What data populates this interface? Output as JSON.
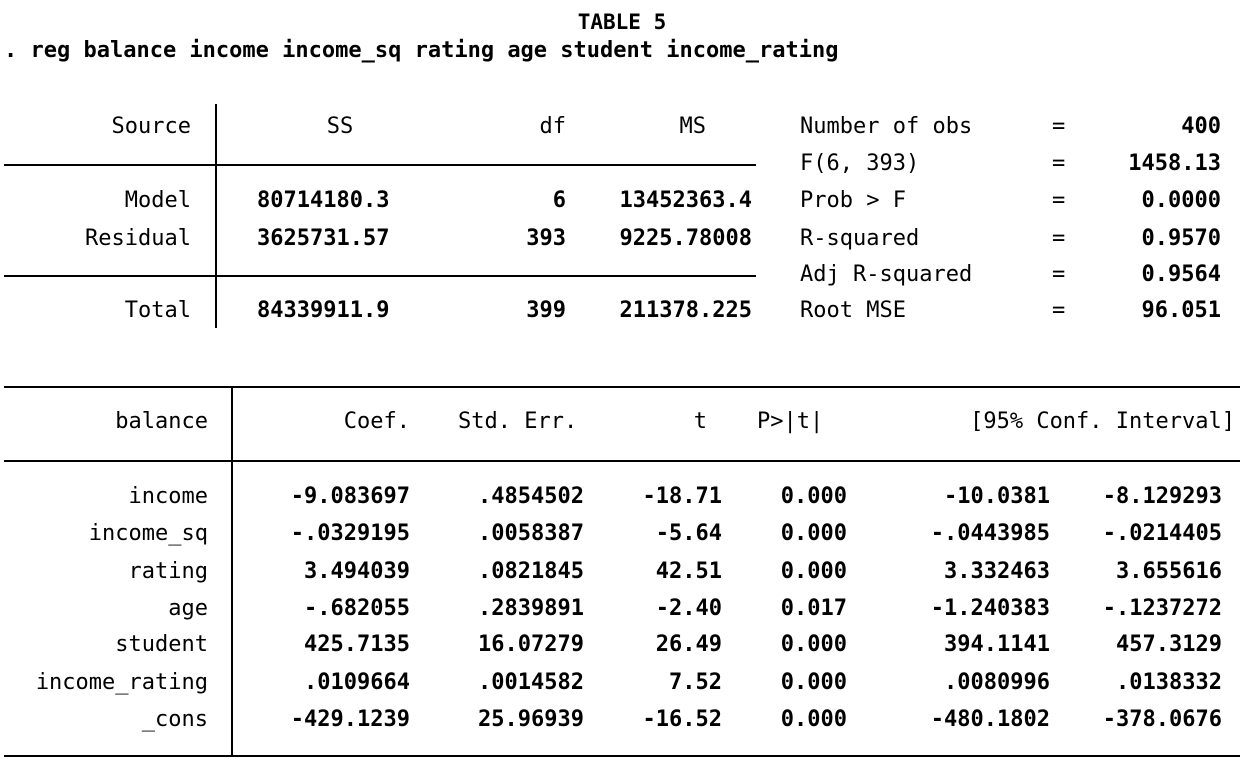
{
  "title": "TABLE 5",
  "command": ". reg balance income income_sq rating age student income_rating",
  "anova": {
    "headers": [
      "Source",
      "SS",
      "df",
      "MS"
    ],
    "rows": [
      {
        "source": "Model",
        "ss": "80714180.3",
        "df": "6",
        "ms": "13452363.4"
      },
      {
        "source": "Residual",
        "ss": "3625731.57",
        "df": "393",
        "ms": "9225.78008"
      },
      {
        "source": "Total",
        "ss": "84339911.9",
        "df": "399",
        "ms": "211378.225"
      }
    ]
  },
  "stats": [
    {
      "label": "Number of obs",
      "eq": "=",
      "value": "400"
    },
    {
      "label": "F(6, 393)",
      "eq": "=",
      "value": "1458.13"
    },
    {
      "label": "Prob > F",
      "eq": "=",
      "value": "0.0000"
    },
    {
      "label": "R-squared",
      "eq": "=",
      "value": "0.9570"
    },
    {
      "label": "Adj R-squared",
      "eq": "=",
      "value": "0.9564"
    },
    {
      "label": "Root MSE",
      "eq": "=",
      "value": "96.051"
    }
  ],
  "coef": {
    "headers": [
      "balance",
      "Coef.",
      "Std. Err.",
      "t",
      "P>|t|",
      "[95% Conf. Interval]"
    ],
    "rows": [
      {
        "var": "income",
        "coef": "-9.083697",
        "se": ".4854502",
        "t": "-18.71",
        "p": "0.000",
        "lo": "-10.0381",
        "hi": "-8.129293"
      },
      {
        "var": "income_sq",
        "coef": "-.0329195",
        "se": ".0058387",
        "t": "-5.64",
        "p": "0.000",
        "lo": "-.0443985",
        "hi": "-.0214405"
      },
      {
        "var": "rating",
        "coef": "3.494039",
        "se": ".0821845",
        "t": "42.51",
        "p": "0.000",
        "lo": "3.332463",
        "hi": "3.655616"
      },
      {
        "var": "age",
        "coef": "-.682055",
        "se": ".2839891",
        "t": "-2.40",
        "p": "0.017",
        "lo": "-1.240383",
        "hi": "-.1237272"
      },
      {
        "var": "student",
        "coef": "425.7135",
        "se": "16.07279",
        "t": "26.49",
        "p": "0.000",
        "lo": "394.1141",
        "hi": "457.3129"
      },
      {
        "var": "income_rating",
        "coef": ".0109664",
        "se": ".0014582",
        "t": "7.52",
        "p": "0.000",
        "lo": ".0080996",
        "hi": ".0138332"
      },
      {
        "var": "_cons",
        "coef": "-429.1239",
        "se": "25.96939",
        "t": "-16.52",
        "p": "0.000",
        "lo": "-480.1802",
        "hi": "-378.0676"
      }
    ]
  }
}
